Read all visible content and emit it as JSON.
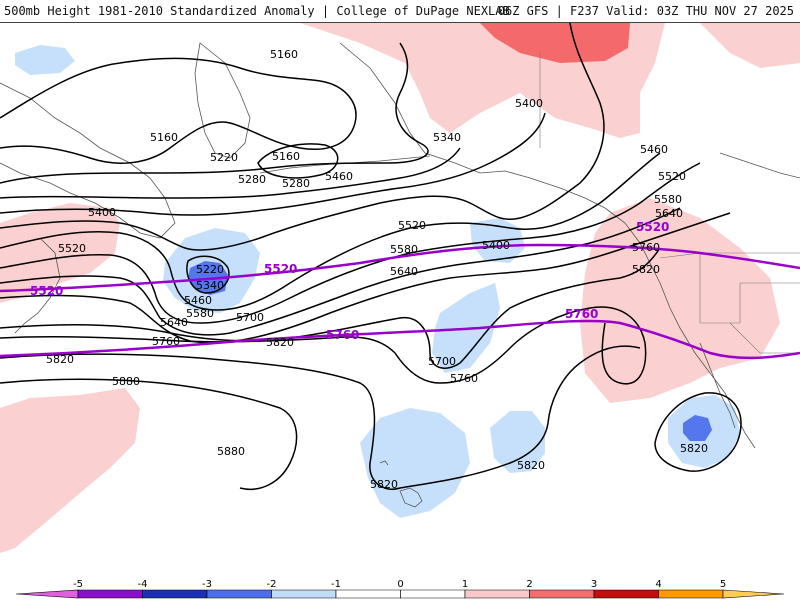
{
  "header": {
    "title": "500mb Height 1981-2010 Standardized Anomaly | College of DuPage NEXLAB",
    "run_info": "06Z GFS | F237 Valid: 03Z THU NOV 27 2025"
  },
  "map": {
    "contour_labels": [
      {
        "id": "c5160-a",
        "text": "5160"
      },
      {
        "id": "c5160-b",
        "text": "5160"
      },
      {
        "id": "c5160-c",
        "text": "5160"
      },
      {
        "id": "c5220-a",
        "text": "5220"
      },
      {
        "id": "c5280-a",
        "text": "5280"
      },
      {
        "id": "c5280-b",
        "text": "5280"
      },
      {
        "id": "c5340-a",
        "text": "5340"
      },
      {
        "id": "c5400-a",
        "text": "5400"
      },
      {
        "id": "c5400-b",
        "text": "5400"
      },
      {
        "id": "c5400-c",
        "text": "5400"
      },
      {
        "id": "c5460-a",
        "text": "5460"
      },
      {
        "id": "c5460-b",
        "text": "5460"
      },
      {
        "id": "c5520-a",
        "text": "5520"
      },
      {
        "id": "c5520-b",
        "text": "5520"
      },
      {
        "id": "c5520-c",
        "text": "5520"
      },
      {
        "id": "c5580-a",
        "text": "5580"
      },
      {
        "id": "c5580-b",
        "text": "5580"
      },
      {
        "id": "c5640-a",
        "text": "5640"
      },
      {
        "id": "c5640-b",
        "text": "5640"
      },
      {
        "id": "c5640-c",
        "text": "5640"
      },
      {
        "id": "c5700-a",
        "text": "5700"
      },
      {
        "id": "c5700-b",
        "text": "5700"
      },
      {
        "id": "c5760-a",
        "text": "5760"
      },
      {
        "id": "c5760-b",
        "text": "5760"
      },
      {
        "id": "c5760-c",
        "text": "5760"
      },
      {
        "id": "c5820-a",
        "text": "5820"
      },
      {
        "id": "c5820-b",
        "text": "5820"
      },
      {
        "id": "c5820-c",
        "text": "5820"
      },
      {
        "id": "c5820-d",
        "text": "5820"
      },
      {
        "id": "c5820-e",
        "text": "5820"
      },
      {
        "id": "c5820-f",
        "text": "5820"
      },
      {
        "id": "c5880-a",
        "text": "5880"
      },
      {
        "id": "c5880-b",
        "text": "5880"
      },
      {
        "id": "c5220-low",
        "text": "5220"
      },
      {
        "id": "c5340-low",
        "text": "5340"
      },
      {
        "id": "c5460-low",
        "text": "5460"
      },
      {
        "id": "c5580-low",
        "text": "5580"
      }
    ],
    "reference_labels": [
      {
        "id": "r5520-a",
        "text": "5520"
      },
      {
        "id": "r5520-b",
        "text": "5520"
      },
      {
        "id": "r5520-c",
        "text": "5520"
      },
      {
        "id": "r5760-a",
        "text": "5760"
      },
      {
        "id": "r5760-b",
        "text": "5760"
      }
    ],
    "colors": {
      "contour": "#000000",
      "reference": "#9900cc",
      "coast": "#555555",
      "neg1": "#c6e0fb",
      "neg2": "#5577ee",
      "neg3": "#2a4fd6",
      "pos1": "#fbd0d0",
      "pos2": "#f46a6a",
      "pos3": "#cc1111"
    }
  },
  "colorbar": {
    "ticks": [
      "-5",
      "-4",
      "-3",
      "-2",
      "-1",
      "0",
      "1",
      "2",
      "3",
      "4",
      "5"
    ],
    "segments": [
      "#e060e0",
      "#8a10c8",
      "#1a30b0",
      "#4d70e8",
      "#c0dcf7",
      "#ffffff",
      "#ffffff",
      "#f9c8c8",
      "#f07070",
      "#c01010",
      "#ff9900",
      "#ffcc55"
    ]
  }
}
